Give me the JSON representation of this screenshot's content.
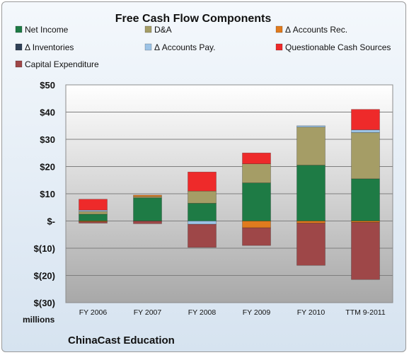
{
  "chart_data": {
    "type": "bar",
    "stacked": true,
    "title": "Free Cash Flow Components",
    "company": "ChinaCast Education",
    "units_label": "millions",
    "categories": [
      "FY 2006",
      "FY 2007",
      "FY 2008",
      "FY 2009",
      "FY 2010",
      "TTM 9-2011"
    ],
    "ylim": [
      -30,
      50
    ],
    "yticks": [
      -30,
      -20,
      -10,
      0,
      10,
      20,
      30,
      40,
      50
    ],
    "ytick_labels": [
      "$(30)",
      "$(20)",
      "$(10)",
      "$-",
      "$10",
      "$20",
      "$30",
      "$40",
      "$50"
    ],
    "grid": true,
    "legend_position": "top",
    "series": [
      {
        "name": "Net Income",
        "color": "#1e7b45",
        "values": [
          2.5,
          8.5,
          6.5,
          14,
          20.5,
          15.5
        ]
      },
      {
        "name": "D&A",
        "color": "#a59d66",
        "values": [
          1,
          0.5,
          4.5,
          7,
          14,
          17
        ]
      },
      {
        "name": "Δ Accounts Rec.",
        "color": "#e07b1e",
        "values": [
          -0.3,
          0.5,
          0,
          -2.5,
          -0.8,
          -0.5
        ]
      },
      {
        "name": "Δ Inventories",
        "color": "#2f4157",
        "values": [
          0,
          0,
          0,
          0,
          0,
          0
        ]
      },
      {
        "name": "Δ Accounts Pay.",
        "color": "#9cc3e6",
        "values": [
          0.5,
          0,
          -1.2,
          0,
          0.5,
          1
        ]
      },
      {
        "name": "Questionable Cash Sources",
        "color": "#ee2a2a",
        "values": [
          4,
          0,
          7,
          4,
          0,
          7.5
        ]
      },
      {
        "name": "Capital Expenditure",
        "color": "#9e4748",
        "values": [
          -0.5,
          -1,
          -8.5,
          -6.5,
          -15.5,
          -21
        ]
      }
    ]
  }
}
